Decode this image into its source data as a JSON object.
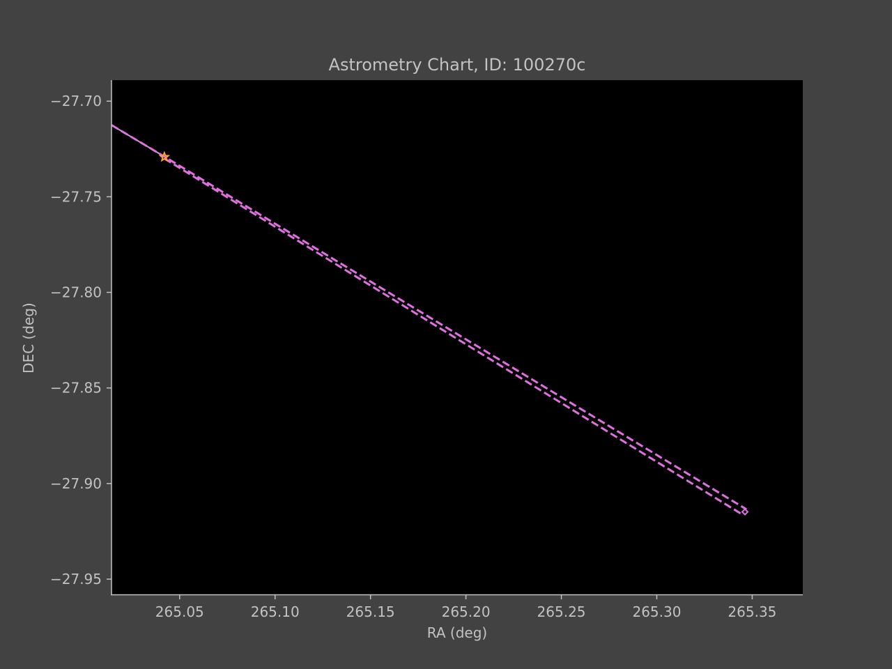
{
  "chart_data": {
    "type": "line",
    "title": "Astrometry Chart, ID: 100270c",
    "xlabel": "RA (deg)",
    "ylabel": "DEC (deg)",
    "xlim": [
      265.0143,
      265.3765
    ],
    "ylim": [
      -27.958,
      -27.689
    ],
    "xticks": [
      265.05,
      265.1,
      265.15,
      265.2,
      265.25,
      265.3,
      265.35
    ],
    "xtick_labels": [
      "265.05",
      "265.10",
      "265.15",
      "265.20",
      "265.25",
      "265.30",
      "265.35"
    ],
    "yticks": [
      -27.7,
      -27.75,
      -27.8,
      -27.85,
      -27.9,
      -27.95
    ],
    "ytick_labels": [
      "−27.70",
      "−27.75",
      "−27.80",
      "−27.85",
      "−27.90",
      "−27.95"
    ],
    "grid": false,
    "series": [
      {
        "style": "solid",
        "color": "#c8a0c8",
        "x": [
          265.0143,
          265.042
        ],
        "y": [
          -27.7125,
          -27.729
        ]
      },
      {
        "style": "dashed",
        "color": "#e070e0",
        "x": [
          265.0143,
          265.042,
          265.347
        ],
        "y": [
          -27.7125,
          -27.729,
          -27.9135
        ]
      },
      {
        "style": "dashed",
        "color": "#e070e0",
        "x": [
          265.042,
          265.3445
        ],
        "y": [
          -27.73,
          -27.916
        ]
      }
    ],
    "markers": [
      {
        "shape": "star",
        "color": "#ffa040",
        "x": 265.042,
        "y": -27.7292
      },
      {
        "shape": "diamond",
        "color": "#e070e0",
        "x": 265.3462,
        "y": -27.9148
      }
    ],
    "colors": {
      "figure_bg": "#424242",
      "plot_bg": "#000000",
      "text": "#c2c2c2",
      "axis": "#c2c2c2"
    }
  }
}
